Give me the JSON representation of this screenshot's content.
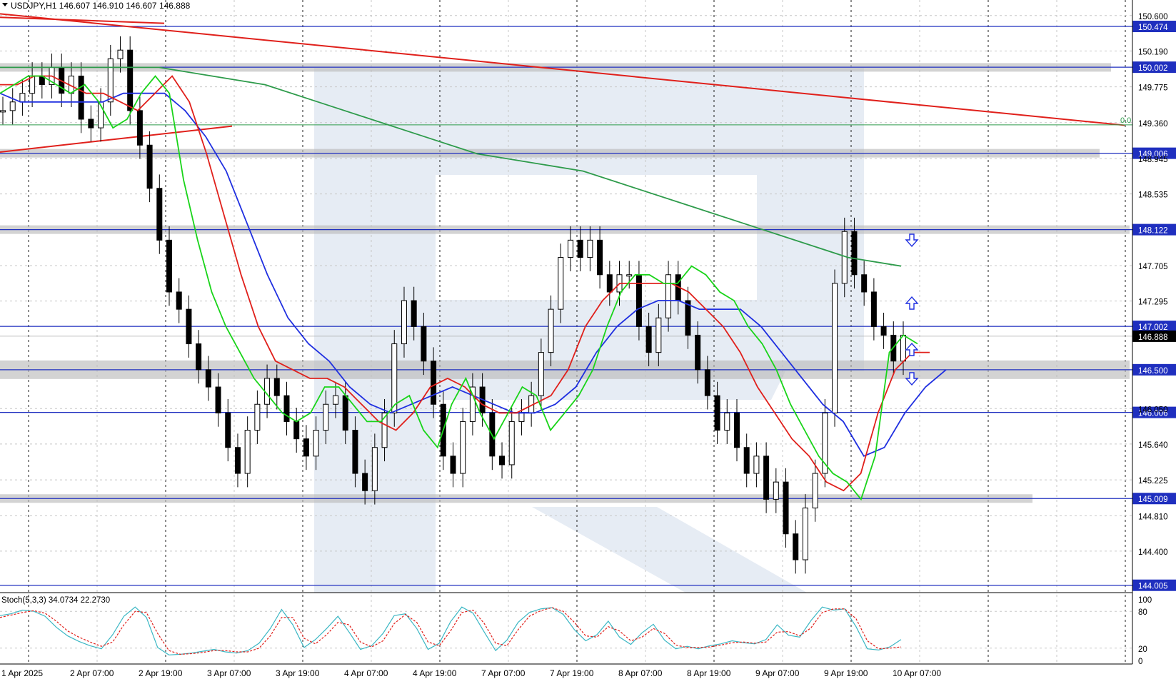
{
  "header": {
    "symbol_info": "USDJPY,H1  146.607 146.910 146.607 146.888",
    "menu_icon": "triangle-down-icon"
  },
  "chart_data": {
    "type": "candlestick",
    "symbol": "USDJPY",
    "timeframe": "H1",
    "ylim": [
      143.92,
      150.78
    ],
    "price_labels": [
      "150.600",
      "150.190",
      "149.775",
      "149.360",
      "148.945",
      "148.535",
      "147.705",
      "147.295",
      "146.050",
      "145.640",
      "145.225",
      "144.810",
      "144.400"
    ],
    "price_label_values": [
      150.6,
      150.19,
      149.775,
      149.36,
      148.945,
      148.535,
      147.705,
      147.295,
      146.05,
      145.64,
      145.225,
      144.81,
      144.4
    ],
    "levels": [
      {
        "value": 150.474,
        "label": "150.474"
      },
      {
        "value": 150.002,
        "label": "150.002"
      },
      {
        "value": 149.006,
        "label": "149.006"
      },
      {
        "value": 148.122,
        "label": "148.122"
      },
      {
        "value": 147.002,
        "label": "147.002"
      },
      {
        "value": 146.5,
        "label": "146.500"
      },
      {
        "value": 146.006,
        "label": "146.006"
      },
      {
        "value": 145.009,
        "label": "145.009"
      },
      {
        "value": 144.005,
        "label": "144.005"
      }
    ],
    "current_price": {
      "value": 146.888,
      "label": "146.888"
    },
    "fib_label": "0.0",
    "time_labels": [
      "1 Apr 2025",
      "2 Apr 07:00",
      "2 Apr 19:00",
      "3 Apr 07:00",
      "3 Apr 19:00",
      "4 Apr 07:00",
      "4 Apr 19:00",
      "7 Apr 07:00",
      "7 Apr 19:00",
      "8 Apr 07:00",
      "8 Apr 19:00",
      "9 Apr 07:00",
      "9 Apr 19:00",
      "10 Apr 07:00"
    ],
    "close_path": [
      149.5,
      149.6,
      149.7,
      149.9,
      149.8,
      150.0,
      149.7,
      149.9,
      149.4,
      149.3,
      149.6,
      150.1,
      150.2,
      149.5,
      149.1,
      148.6,
      148.0,
      147.4,
      147.2,
      146.8,
      146.5,
      146.3,
      146.0,
      145.6,
      145.3,
      145.8,
      146.1,
      146.4,
      146.2,
      145.9,
      145.7,
      145.5,
      145.8,
      146.1,
      146.2,
      145.8,
      145.3,
      145.1,
      145.6,
      146.0,
      146.8,
      147.3,
      147.0,
      146.6,
      146.1,
      145.5,
      145.3,
      145.9,
      146.3,
      146.0,
      145.5,
      145.4,
      145.9,
      146.0,
      146.2,
      146.7,
      147.2,
      147.8,
      148.0,
      147.8,
      148.0,
      147.6,
      147.4,
      147.6,
      147.6,
      147.0,
      146.7,
      147.1,
      147.6,
      147.3,
      146.9,
      146.5,
      146.2,
      145.8,
      146.0,
      145.6,
      145.3,
      145.5,
      145.0,
      145.2,
      144.6,
      144.3,
      144.9,
      145.3,
      146.0,
      147.5,
      148.1,
      147.6,
      147.4,
      147.0,
      146.9,
      146.6,
      146.9
    ],
    "ma_fast_green": [
      149.7,
      149.8,
      149.9,
      149.9,
      149.8,
      149.7,
      149.8,
      149.6,
      149.3,
      149.4,
      149.7,
      149.9,
      149.7,
      148.7,
      148.0,
      147.4,
      147.0,
      146.7,
      146.4,
      146.2,
      146.0,
      145.9,
      146.0,
      146.3,
      146.3,
      146.1,
      145.9,
      145.9,
      146.1,
      146.2,
      145.8,
      145.6,
      146.1,
      146.4,
      146.0,
      145.7,
      146.0,
      146.3,
      146.2,
      145.8,
      146.0,
      146.2,
      146.5,
      147.0,
      147.4,
      147.6,
      147.6,
      147.5,
      147.5,
      147.7,
      147.6,
      147.4,
      147.3,
      147.0,
      146.8,
      146.5,
      146.1,
      145.8,
      145.5,
      145.3,
      145.2,
      145.0,
      145.5,
      146.7,
      146.9,
      146.8
    ],
    "ma_mid_red": [
      149.8,
      149.8,
      149.9,
      149.9,
      149.8,
      149.7,
      149.7,
      149.6,
      149.5,
      149.7,
      149.9,
      149.6,
      149.0,
      148.3,
      147.6,
      147.0,
      146.6,
      146.5,
      146.4,
      146.4,
      146.3,
      146.1,
      145.9,
      145.8,
      146.0,
      146.3,
      146.4,
      146.3,
      146.1,
      146.0,
      146.0,
      146.1,
      146.2,
      146.5,
      147.0,
      147.3,
      147.5,
      147.5,
      147.5,
      147.5,
      147.4,
      147.2,
      147.0,
      146.7,
      146.3,
      146.0,
      145.7,
      145.5,
      145.2,
      145.1,
      145.3,
      146.0,
      146.5,
      146.7,
      146.7
    ],
    "ma_slow_blue": [
      149.7,
      149.6,
      149.6,
      149.6,
      149.6,
      149.6,
      149.7,
      149.7,
      149.7,
      149.5,
      149.2,
      148.8,
      148.2,
      147.6,
      147.1,
      146.8,
      146.6,
      146.3,
      146.1,
      146.0,
      146.1,
      146.2,
      146.3,
      146.2,
      146.1,
      146.0,
      146.0,
      146.1,
      146.3,
      146.7,
      147.0,
      147.2,
      147.3,
      147.3,
      147.2,
      147.2,
      147.2,
      147.0,
      146.7,
      146.4,
      146.1,
      145.9,
      145.5,
      145.6,
      146.0,
      146.3,
      146.5
    ],
    "ma_long_green": [
      150.0,
      150.0,
      150.0,
      150.0,
      149.9,
      149.8,
      149.6,
      149.4,
      149.2,
      149.0,
      148.9,
      148.8,
      148.6,
      148.4,
      148.2,
      148.0,
      147.8,
      147.7
    ],
    "stochastic": {
      "label": "Stoch(5,3,3) 34.0734 22.2730",
      "ylim": [
        0,
        100
      ],
      "levels": [
        "100",
        "80",
        "20",
        "0"
      ],
      "level_values": [
        100,
        80,
        20,
        0
      ],
      "main": [
        73,
        76,
        82,
        80,
        72,
        54,
        40,
        31,
        24,
        19,
        42,
        72,
        87,
        70,
        21,
        9,
        10,
        12,
        15,
        18,
        14,
        12,
        16,
        28,
        52,
        83,
        58,
        21,
        34,
        52,
        72,
        46,
        18,
        24,
        44,
        73,
        76,
        52,
        18,
        28,
        63,
        87,
        77,
        46,
        16,
        33,
        62,
        78,
        84,
        86,
        75,
        50,
        32,
        42,
        64,
        38,
        26,
        45,
        59,
        33,
        19,
        23,
        19,
        24,
        27,
        32,
        29,
        27,
        34,
        58,
        41,
        38,
        65,
        87,
        82,
        84,
        55,
        19,
        17,
        22,
        34
      ],
      "signal": [
        70,
        74,
        78,
        81,
        77,
        64,
        48,
        38,
        30,
        23,
        30,
        58,
        80,
        78,
        44,
        16,
        10,
        11,
        13,
        16,
        16,
        14,
        14,
        20,
        40,
        70,
        70,
        36,
        27,
        42,
        62,
        58,
        30,
        22,
        32,
        60,
        75,
        62,
        30,
        24,
        48,
        78,
        82,
        60,
        28,
        24,
        50,
        72,
        81,
        86,
        80,
        62,
        40,
        38,
        55,
        48,
        32,
        38,
        52,
        44,
        25,
        21,
        21,
        22,
        25,
        29,
        30,
        28,
        30,
        46,
        47,
        40,
        53,
        78,
        84,
        84,
        68,
        32,
        19,
        20,
        22
      ]
    }
  }
}
